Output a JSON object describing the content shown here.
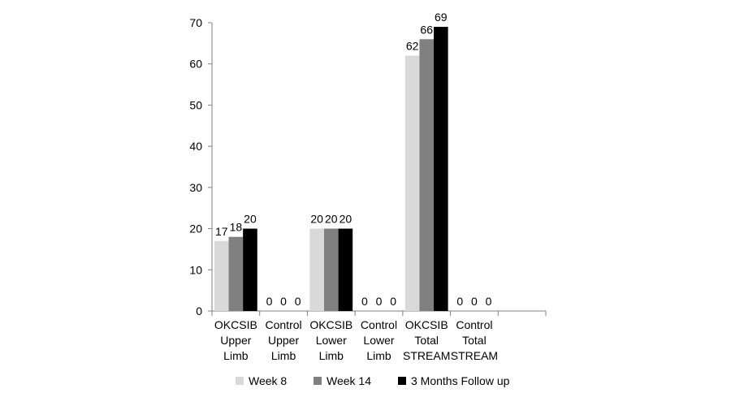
{
  "chart_data": {
    "type": "bar",
    "title": "",
    "xlabel": "",
    "ylabel": "",
    "ylim": [
      0,
      70
    ],
    "yticks": [
      0,
      10,
      20,
      30,
      40,
      50,
      60,
      70
    ],
    "grid": false,
    "legend": "bottom",
    "categories": [
      [
        "OKCSIB",
        "Upper",
        "Limb"
      ],
      [
        "Control",
        "Upper",
        "Limb"
      ],
      [
        "OKCSIB",
        "Lower",
        "Limb"
      ],
      [
        "Control",
        "Lower",
        "Limb"
      ],
      [
        "OKCSIB",
        "Total",
        "STREAM"
      ],
      [
        "Control",
        "Total",
        "STREAM"
      ],
      []
    ],
    "series": [
      {
        "name": "Week 8",
        "color": "#d9d9d9",
        "values": [
          17,
          0,
          20,
          0,
          62,
          0,
          null
        ]
      },
      {
        "name": "Week 14",
        "color": "#808080",
        "values": [
          18,
          0,
          20,
          0,
          66,
          0,
          null
        ]
      },
      {
        "name": "3 Months Follow up",
        "color": "#000000",
        "values": [
          20,
          0,
          20,
          0,
          69,
          0,
          null
        ]
      }
    ]
  }
}
